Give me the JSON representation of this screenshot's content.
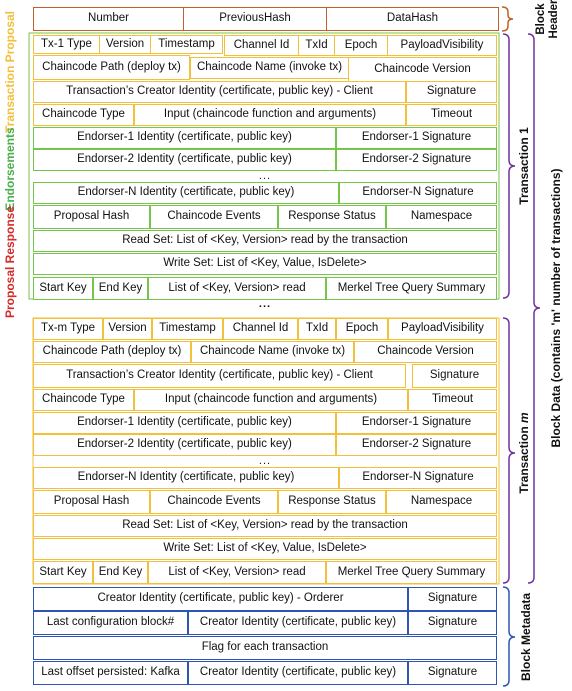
{
  "header": {
    "number": "Number",
    "previous_hash": "PreviousHash",
    "data_hash": "DataHash",
    "label": "Block Header"
  },
  "labels": {
    "block_data": "Block Data (contains 'm' number of transactions)",
    "transaction_1": "Transaction 1",
    "transaction_m_prefix": "Transaction ",
    "transaction_m_suffix": "m",
    "block_metadata": "Block Metadata",
    "transaction_proposal": "Transaction Proposal",
    "endorsements": "Endorsements",
    "proposal_response": "Proposal Response",
    "ellipsis": "..."
  },
  "tx1": {
    "tx_type": "Tx-1 Type",
    "version": "Version",
    "timestamp": "Timestamp",
    "channel_id": "Channel Id",
    "tx_id": "TxId",
    "epoch": "Epoch",
    "payload_visibility": "PayloadVisibility",
    "chaincode_path": "Chaincode Path (deploy tx)",
    "chaincode_name": "Chaincode Name (invoke tx)",
    "chaincode_version": "Chaincode Version",
    "creator_identity": "Transaction’s Creator Identity (certificate, public key) - Client",
    "signature": "Signature",
    "chaincode_type": "Chaincode Type",
    "input": "Input (chaincode function and arguments)",
    "timeout": "Timeout",
    "endorser1_identity": "Endorser-1 Identity (certificate, public key)",
    "endorser1_signature": "Endorser-1 Signature",
    "endorser2_identity": "Endorser-2 Identity (certificate, public key)",
    "endorser2_signature": "Endorser-2 Signature",
    "endorserN_identity": "Endorser-N Identity (certificate, public key)",
    "endorserN_signature": "Endorser-N Signature",
    "proposal_hash": "Proposal Hash",
    "chaincode_events": "Chaincode Events",
    "response_status": "Response Status",
    "namespace": "Namespace",
    "read_set": "Read Set: List of <Key, Version> read by the transaction",
    "write_set": "Write Set: List of <Key, Value, IsDelete>",
    "start_key": "Start Key",
    "end_key": "End Key",
    "range_read": "List of <Key, Version> read",
    "merkel_summary": "Merkel Tree Query Summary"
  },
  "txm": {
    "tx_type": "Tx-m Type",
    "version": "Version",
    "timestamp": "Timestamp",
    "channel_id": "Channel Id",
    "tx_id": "TxId",
    "epoch": "Epoch",
    "payload_visibility": "PayloadVisibility",
    "chaincode_path": "Chaincode Path (deploy tx)",
    "chaincode_name": "Chaincode Name (invoke tx)",
    "chaincode_version": "Chaincode Version",
    "creator_identity": "Transaction’s Creator Identity (certificate, public key) - Client",
    "signature": "Signature",
    "chaincode_type": "Chaincode Type",
    "input": "Input (chaincode function and arguments)",
    "timeout": "Timeout",
    "endorser1_identity": "Endorser-1 Identity (certificate, public key)",
    "endorser1_signature": "Endorser-1 Signature",
    "endorser2_identity": "Endorser-2 Identity (certificate, public key)",
    "endorser2_signature": "Endorser-2 Signature",
    "endorserN_identity": "Endorser-N Identity (certificate, public key)",
    "endorserN_signature": "Endorser-N Signature",
    "proposal_hash": "Proposal Hash",
    "chaincode_events": "Chaincode Events",
    "response_status": "Response Status",
    "namespace": "Namespace",
    "read_set": "Read Set: List of <Key, Version> read by the transaction",
    "write_set": "Write Set: List of <Key, Value, IsDelete>",
    "start_key": "Start Key",
    "end_key": "End Key",
    "range_read": "List of <Key, Version> read",
    "merkel_summary": "Merkel Tree Query Summary"
  },
  "metadata": {
    "orderer_identity": "Creator Identity (certificate, public key) - Orderer",
    "signature": "Signature",
    "last_config_block": "Last configuration block#",
    "creator_identity": "Creator Identity (certificate, public key)",
    "flags": "Flag for each transaction",
    "last_offset": "Last offset persisted: Kafka"
  },
  "colors": {
    "header": "#c0612b",
    "transaction": "#f2c03a",
    "endorsement": "#74c54a",
    "metadata": "#2f55b2",
    "proposal_label": "#f2c03a",
    "endorsements_label": "#4ab04a",
    "response_label": "#d42a2a"
  }
}
